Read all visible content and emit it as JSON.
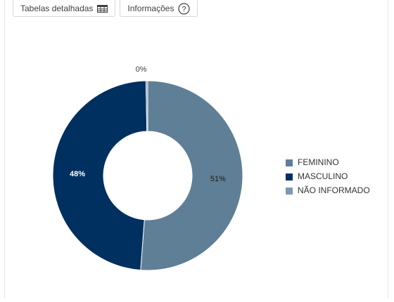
{
  "toolbar": {
    "tables_label": "Tabelas detalhadas",
    "tables_icon": "table-icon",
    "info_label": "Informações",
    "info_icon": "help-circle-icon"
  },
  "colors": {
    "feminino": "#5f7f96",
    "masculino": "#00305f",
    "nao_informado": "#7b98b4"
  },
  "chart_data": {
    "type": "pie",
    "variant": "donut",
    "title": "",
    "categories": [
      "FEMININO",
      "MASCULINO",
      "NÃO INFORMADO"
    ],
    "values": [
      51.2,
      48.5,
      0.3
    ],
    "data_labels": [
      "51%",
      "48%",
      "0%"
    ],
    "legend_position": "right"
  }
}
